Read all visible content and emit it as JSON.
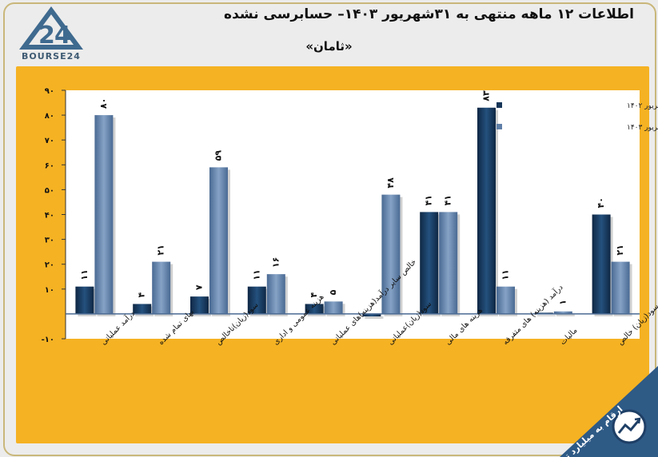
{
  "header": {
    "title": "اطلاعات ۱۲ ماهه منتهی به ۳۱شهریور ۱۴۰۳– حسابرسی نشده",
    "subtitle": "«ثامان»",
    "logo_text": "BOURSE24"
  },
  "note": "ارقام به میلیارد تومان",
  "colors": {
    "panel": "#f5b223",
    "plot_bg": "#ffffff",
    "series1": "#163558",
    "series2": "#5f7fa8",
    "page_bg": "#ececec"
  },
  "chart_data": {
    "type": "bar",
    "categories": [
      "درآمد عملیاتی",
      "بهای تمام شده",
      "سود(زیان)ناخالص",
      "هزینه عمومی و اداری",
      "خالص سایر درآمد(هزینه)های عملیاتی",
      "سود(زیان)عملیاتی",
      "هزینه های مالی",
      "درآمد (هزینه) های متفرقه",
      "مالیات",
      "سود(زیان) خالص"
    ],
    "series": [
      {
        "name": "عملکرد منتهی به شهریور ۱۴۰۲",
        "values": [
          11,
          4,
          7,
          11,
          4,
          -1,
          41,
          83,
          0,
          40
        ],
        "labels": [
          "۱۱",
          "۴",
          "۷",
          "۱۱",
          "۴",
          "",
          "۴۱",
          "۸۳",
          "",
          "۴۰"
        ]
      },
      {
        "name": "عملکرد منتهی به شهریور ۱۴۰۳",
        "values": [
          80,
          21,
          59,
          16,
          5,
          48,
          41,
          11,
          1,
          21
        ],
        "labels": [
          "۸۰",
          "۲۱",
          "۵۹",
          "۱۶",
          "۵",
          "۴۸",
          "۴۱",
          "۱۱",
          "۱",
          "۲۱"
        ]
      }
    ],
    "ylim": [
      -10,
      90
    ],
    "yticks": [
      -10,
      10,
      20,
      30,
      40,
      50,
      60,
      70,
      80,
      90
    ],
    "ytick_labels": [
      "-۱۰",
      "۱۰",
      "۲۰",
      "۳۰",
      "۴۰",
      "۵۰",
      "۶۰",
      "۷۰",
      "۸۰",
      "۹۰"
    ],
    "grid": false,
    "legend": "top-right"
  }
}
